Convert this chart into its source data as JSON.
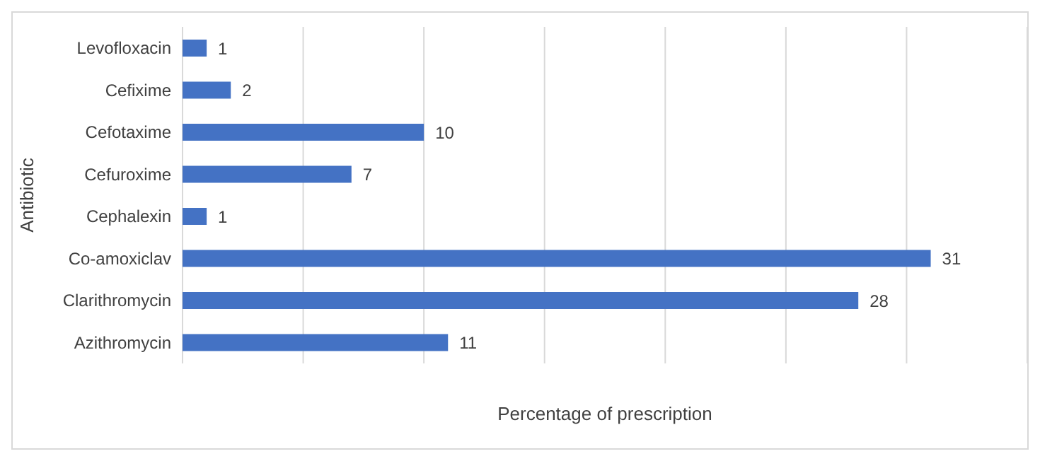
{
  "chart_data": {
    "type": "bar",
    "orientation": "horizontal",
    "xlabel": "Percentage of prescription",
    "ylabel": "Antibiotic",
    "categories": [
      "Levofloxacin",
      "Cefixime",
      "Cefotaxime",
      "Cefuroxime",
      "Cephalexin",
      "Co-amoxiclav",
      "Clarithromycin",
      "Azithromycin"
    ],
    "values": [
      1,
      2,
      10,
      7,
      1,
      31,
      28,
      11
    ],
    "color": "#4472c4",
    "xlim": [
      0,
      35
    ],
    "xticks": [
      {
        "value": 0,
        "label": null
      },
      {
        "value": 5,
        "label": null
      },
      {
        "value": 10,
        "label": null
      },
      {
        "value": 15,
        "label": null
      },
      {
        "value": 20,
        "label": null
      },
      {
        "value": 25,
        "label": null
      },
      {
        "value": 30,
        "label": null
      },
      {
        "value": 35,
        "label": null
      }
    ],
    "tick_labels": "y",
    "grid": "x",
    "data_labels": true
  }
}
